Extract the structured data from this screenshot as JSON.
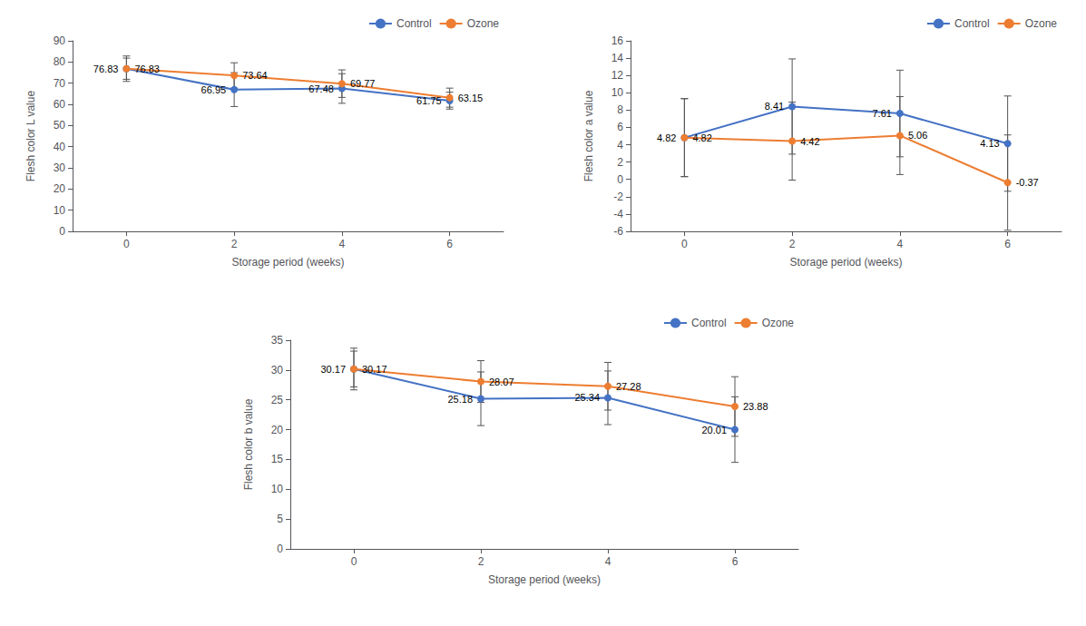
{
  "chart_data": [
    {
      "type": "line",
      "xlabel": "Storage period (weeks)",
      "ylabel": "Flesh color L value",
      "x": [
        0,
        2,
        4,
        6
      ],
      "series": [
        {
          "name": "Control",
          "color": "#4472c4",
          "values": [
            76.83,
            66.95,
            67.48,
            61.75
          ],
          "errors": [
            6.0,
            8.0,
            7.0,
            4.0
          ]
        },
        {
          "name": "Ozone",
          "color": "#ed7d31",
          "values": [
            76.83,
            73.64,
            69.77,
            63.15
          ],
          "errors": [
            5.0,
            6.0,
            6.5,
            4.5
          ]
        }
      ],
      "xlim": [
        -1,
        7
      ],
      "xticks": [
        0,
        2,
        4,
        6
      ],
      "ylim": [
        0,
        90
      ],
      "yticks": [
        0,
        10,
        20,
        30,
        40,
        50,
        60,
        70,
        80,
        90
      ],
      "grid": false,
      "legend": "upper right",
      "data_labels": true,
      "marker": "circle"
    },
    {
      "type": "line",
      "xlabel": "Storage period (weeks)",
      "ylabel": "Flesh color a value",
      "x": [
        0,
        2,
        4,
        6
      ],
      "series": [
        {
          "name": "Control",
          "color": "#4472c4",
          "values": [
            4.82,
            8.41,
            7.61,
            4.13
          ],
          "errors": [
            4.5,
            5.5,
            5.0,
            5.5
          ]
        },
        {
          "name": "Ozone",
          "color": "#ed7d31",
          "values": [
            4.82,
            4.42,
            5.06,
            -0.37
          ],
          "errors": [
            4.5,
            4.5,
            4.5,
            5.5
          ]
        }
      ],
      "xlim": [
        -1,
        7
      ],
      "xticks": [
        0,
        2,
        4,
        6
      ],
      "ylim": [
        -6,
        16
      ],
      "yticks": [
        -6,
        -4,
        -2,
        0,
        2,
        4,
        6,
        8,
        10,
        12,
        14,
        16
      ],
      "grid": false,
      "legend": "upper right",
      "data_labels": true,
      "marker": "circle"
    },
    {
      "type": "line",
      "xlabel": "Storage period (weeks)",
      "ylabel": "Flesh color b value",
      "x": [
        0,
        2,
        4,
        6
      ],
      "series": [
        {
          "name": "Control",
          "color": "#4472c4",
          "values": [
            30.17,
            25.18,
            25.34,
            20.01
          ],
          "errors": [
            3.0,
            4.5,
            4.5,
            5.5
          ]
        },
        {
          "name": "Ozone",
          "color": "#ed7d31",
          "values": [
            30.17,
            28.07,
            27.28,
            23.88
          ],
          "errors": [
            3.5,
            3.5,
            4.0,
            5.0
          ]
        }
      ],
      "xlim": [
        -1,
        7
      ],
      "xticks": [
        0,
        2,
        4,
        6
      ],
      "ylim": [
        0,
        35
      ],
      "yticks": [
        0,
        5,
        10,
        15,
        20,
        25,
        30,
        35
      ],
      "grid": false,
      "legend": "upper right",
      "data_labels": true,
      "marker": "circle"
    }
  ]
}
